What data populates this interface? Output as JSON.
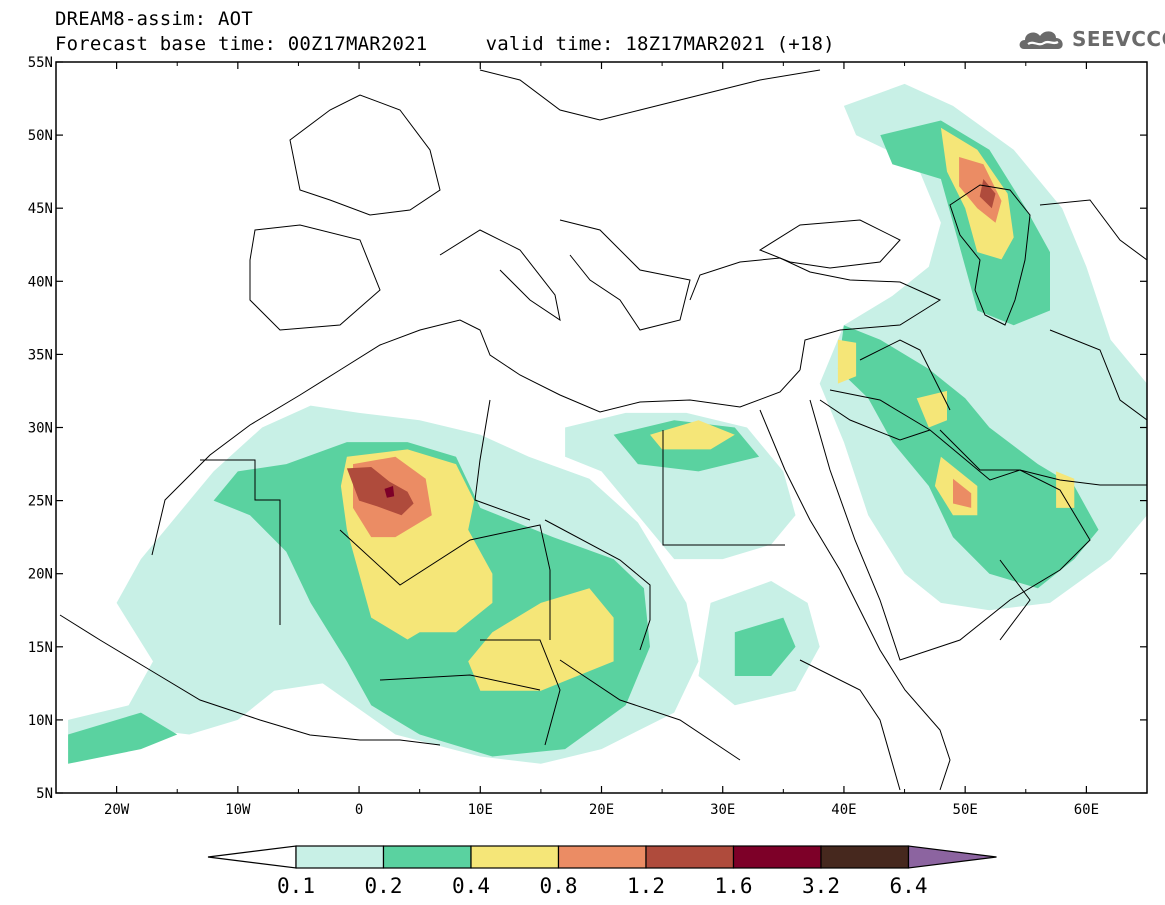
{
  "header": {
    "line1": "DREAM8-assim: AOT",
    "base_time_label": "Forecast base time: 00Z17MAR2021",
    "valid_time_label": "valid time: 18Z17MAR2021 (+18)"
  },
  "logo": {
    "text": "SEEVCCC",
    "icon": "cloud-icon",
    "color": "#6a6a6a"
  },
  "map": {
    "lon_range": [
      -25,
      65
    ],
    "lat_range": [
      5,
      55
    ],
    "lon_ticks": [
      {
        "value": -20,
        "label": "20W"
      },
      {
        "value": -10,
        "label": "10W"
      },
      {
        "value": 0,
        "label": "0"
      },
      {
        "value": 10,
        "label": "10E"
      },
      {
        "value": 20,
        "label": "20E"
      },
      {
        "value": 30,
        "label": "30E"
      },
      {
        "value": 40,
        "label": "40E"
      },
      {
        "value": 50,
        "label": "50E"
      },
      {
        "value": 60,
        "label": "60E"
      }
    ],
    "lat_ticks": [
      {
        "value": 55,
        "label": "55N"
      },
      {
        "value": 50,
        "label": "50N"
      },
      {
        "value": 45,
        "label": "45N"
      },
      {
        "value": 40,
        "label": "40N"
      },
      {
        "value": 35,
        "label": "35N"
      },
      {
        "value": 30,
        "label": "30N"
      },
      {
        "value": 25,
        "label": "25N"
      },
      {
        "value": 20,
        "label": "20N"
      },
      {
        "value": 15,
        "label": "15N"
      },
      {
        "value": 10,
        "label": "10N"
      },
      {
        "value": 5,
        "label": "5N"
      }
    ]
  },
  "colorbar": {
    "levels": [
      "0.1",
      "0.2",
      "0.4",
      "0.8",
      "1.2",
      "1.6",
      "3.2",
      "6.4"
    ],
    "colors": [
      "#ffffff",
      "#c8f0e6",
      "#5ad2a0",
      "#f5e678",
      "#eb8c64",
      "#af4b3c",
      "#7d0028",
      "#46281e",
      "#8c64a0"
    ]
  },
  "dust_plumes": [
    {
      "name": "west-saharan-plume",
      "bins": [
        {
          "level": 1,
          "outline": [
            [
              -24,
              8
            ],
            [
              -19,
              9.5
            ],
            [
              -14,
              9
            ],
            [
              -10,
              10
            ],
            [
              -7,
              12
            ],
            [
              -3,
              12.5
            ],
            [
              3,
              9
            ],
            [
              10,
              7.5
            ],
            [
              15,
              7
            ],
            [
              20,
              8
            ],
            [
              26,
              10.5
            ],
            [
              28,
              14
            ],
            [
              27,
              18
            ],
            [
              23,
              23.5
            ],
            [
              19,
              26.5
            ],
            [
              14,
              28
            ],
            [
              10,
              29.5
            ],
            [
              5,
              30.5
            ],
            [
              0,
              31
            ],
            [
              -4,
              31.5
            ],
            [
              -8,
              30
            ],
            [
              -12,
              27
            ],
            [
              -15,
              24
            ],
            [
              -18,
              21
            ],
            [
              -20,
              18
            ],
            [
              -17,
              14
            ],
            [
              -19,
              11
            ],
            [
              -24,
              10
            ]
          ]
        },
        {
          "level": 2,
          "outline": [
            [
              -12,
              25
            ],
            [
              -9,
              24
            ],
            [
              -6,
              21.5
            ],
            [
              -4,
              18
            ],
            [
              -1,
              14
            ],
            [
              1,
              11
            ],
            [
              5,
              9
            ],
            [
              11,
              7.5
            ],
            [
              17,
              8
            ],
            [
              22,
              11
            ],
            [
              24,
              15
            ],
            [
              23.5,
              19
            ],
            [
              21,
              21
            ],
            [
              16,
              22.5
            ],
            [
              10,
              24.5
            ],
            [
              8,
              28
            ],
            [
              4,
              29
            ],
            [
              -1,
              29
            ],
            [
              -6,
              27.5
            ],
            [
              -10,
              27
            ]
          ]
        },
        {
          "level": 3,
          "outline": [
            [
              -1,
              28
            ],
            [
              4,
              28.5
            ],
            [
              8,
              27.5
            ],
            [
              9.5,
              25
            ],
            [
              9,
              23
            ],
            [
              11,
              20
            ],
            [
              11,
              18
            ],
            [
              8,
              16
            ],
            [
              5,
              16
            ],
            [
              4,
              15.5
            ],
            [
              1,
              17
            ],
            [
              0,
              20
            ],
            [
              -1,
              23
            ],
            [
              -1.5,
              26
            ]
          ]
        },
        {
          "level": 3,
          "outline": [
            [
              15,
              18
            ],
            [
              19,
              19
            ],
            [
              21,
              17
            ],
            [
              21,
              14
            ],
            [
              18,
              13
            ],
            [
              15,
              12
            ],
            [
              10,
              12
            ],
            [
              9,
              14
            ],
            [
              11,
              16
            ]
          ]
        },
        {
          "level": 4,
          "outline": [
            [
              -0.5,
              27.5
            ],
            [
              3,
              28
            ],
            [
              5.5,
              26.5
            ],
            [
              6,
              24
            ],
            [
              3,
              22.5
            ],
            [
              1,
              22.5
            ],
            [
              -0.5,
              24.5
            ]
          ]
        },
        {
          "level": 5,
          "outline": [
            [
              -1,
              27.2
            ],
            [
              1,
              27.3
            ],
            [
              2.5,
              26.3
            ],
            [
              4,
              25.6
            ],
            [
              4.5,
              24.8
            ],
            [
              3.5,
              24
            ],
            [
              1.5,
              24.6
            ],
            [
              0,
              25
            ]
          ]
        },
        {
          "level": 6,
          "outline": [
            [
              2.1,
              25.8
            ],
            [
              2.8,
              26
            ],
            [
              2.9,
              25.3
            ],
            [
              2.3,
              25.2
            ]
          ]
        },
        {
          "level": 2,
          "outline": [
            [
              -24,
              7
            ],
            [
              -18,
              8
            ],
            [
              -15,
              9
            ],
            [
              -18,
              10.5
            ],
            [
              -24,
              9
            ]
          ]
        }
      ]
    },
    {
      "name": "egypt-libya-plume",
      "bins": [
        {
          "level": 1,
          "outline": [
            [
              17,
              30
            ],
            [
              22,
              31
            ],
            [
              27,
              31
            ],
            [
              32,
              30
            ],
            [
              35,
              27
            ],
            [
              36,
              24
            ],
            [
              34,
              22
            ],
            [
              30,
              21
            ],
            [
              26,
              21
            ],
            [
              23,
              24
            ],
            [
              20,
              27
            ],
            [
              17,
              28
            ]
          ]
        },
        {
          "level": 2,
          "outline": [
            [
              21,
              29.5
            ],
            [
              26,
              30.5
            ],
            [
              31,
              30
            ],
            [
              33,
              28
            ],
            [
              28,
              27
            ],
            [
              23,
              27.5
            ]
          ]
        },
        {
          "level": 3,
          "outline": [
            [
              24,
              29.5
            ],
            [
              28,
              30.5
            ],
            [
              31,
              29.5
            ],
            [
              29,
              28.5
            ],
            [
              25,
              28.5
            ]
          ]
        },
        {
          "level": 1,
          "outline": [
            [
              29,
              18
            ],
            [
              34,
              19.5
            ],
            [
              37,
              18
            ],
            [
              38,
              15
            ],
            [
              36,
              12
            ],
            [
              31,
              11
            ],
            [
              28,
              13
            ]
          ]
        },
        {
          "level": 2,
          "outline": [
            [
              31,
              16
            ],
            [
              35,
              17
            ],
            [
              36,
              15
            ],
            [
              34,
              13
            ],
            [
              31,
              13
            ]
          ]
        }
      ]
    },
    {
      "name": "caspian-arabian-plume",
      "bins": [
        {
          "level": 1,
          "outline": [
            [
              40,
              52
            ],
            [
              45,
              53.5
            ],
            [
              49,
              52
            ],
            [
              54,
              49
            ],
            [
              58,
              45
            ],
            [
              60,
              41
            ],
            [
              62,
              36
            ],
            [
              65,
              33
            ],
            [
              65,
              24
            ],
            [
              62,
              21
            ],
            [
              57,
              18
            ],
            [
              52,
              17.5
            ],
            [
              48,
              18
            ],
            [
              45,
              20
            ],
            [
              42,
              24
            ],
            [
              40,
              29
            ],
            [
              38,
              33
            ],
            [
              40,
              37
            ],
            [
              44,
              39
            ],
            [
              47,
              41
            ],
            [
              48,
              44
            ],
            [
              46,
              48
            ],
            [
              41,
              50
            ]
          ]
        },
        {
          "level": 2,
          "outline": [
            [
              43,
              50
            ],
            [
              48,
              51
            ],
            [
              52,
              49
            ],
            [
              55,
              45
            ],
            [
              57,
              42
            ],
            [
              57,
              38
            ],
            [
              54,
              37
            ],
            [
              51,
              38
            ],
            [
              50,
              41
            ],
            [
              49,
              44
            ],
            [
              48,
              47
            ],
            [
              44,
              48
            ]
          ]
        },
        {
          "level": 2,
          "outline": [
            [
              40,
              37
            ],
            [
              43,
              36
            ],
            [
              47,
              34
            ],
            [
              50,
              32
            ],
            [
              52,
              30
            ],
            [
              56,
              27.5
            ],
            [
              59,
              26
            ],
            [
              61,
              23
            ],
            [
              59,
              21
            ],
            [
              56,
              19
            ],
            [
              52,
              20
            ],
            [
              49,
              22.5
            ],
            [
              47,
              26
            ],
            [
              44,
              29
            ],
            [
              42,
              32
            ],
            [
              39.5,
              34
            ]
          ]
        },
        {
          "level": 3,
          "outline": [
            [
              48,
              50.5
            ],
            [
              51,
              49
            ],
            [
              53.5,
              46
            ],
            [
              54,
              43
            ],
            [
              53,
              41.5
            ],
            [
              51,
              42
            ],
            [
              50,
              45
            ],
            [
              48.5,
              47.5
            ]
          ]
        },
        {
          "level": 3,
          "outline": [
            [
              48,
              28
            ],
            [
              51,
              26
            ],
            [
              51,
              24
            ],
            [
              49,
              24
            ],
            [
              47.5,
              26
            ]
          ]
        },
        {
          "level": 3,
          "outline": [
            [
              39.5,
              36
            ],
            [
              41,
              35.8
            ],
            [
              41,
              33.5
            ],
            [
              39.5,
              33
            ]
          ]
        },
        {
          "level": 3,
          "outline": [
            [
              46,
              32
            ],
            [
              48.5,
              32.5
            ],
            [
              48.5,
              30.5
            ],
            [
              47,
              30
            ]
          ]
        },
        {
          "level": 3,
          "outline": [
            [
              57.5,
              27
            ],
            [
              59,
              26.5
            ],
            [
              59,
              24.5
            ],
            [
              57.5,
              24.5
            ]
          ]
        },
        {
          "level": 4,
          "outline": [
            [
              49.5,
              48.5
            ],
            [
              51.5,
              48
            ],
            [
              53,
              45.5
            ],
            [
              52.5,
              44
            ],
            [
              51,
              45
            ],
            [
              49.5,
              46.5
            ]
          ]
        },
        {
          "level": 4,
          "outline": [
            [
              49,
              26.5
            ],
            [
              50.5,
              25.5
            ],
            [
              50.5,
              24.5
            ],
            [
              49,
              24.8
            ]
          ]
        },
        {
          "level": 5,
          "outline": [
            [
              51.5,
              47
            ],
            [
              52.5,
              46
            ],
            [
              52.2,
              45
            ],
            [
              51.2,
              45.8
            ]
          ]
        }
      ]
    }
  ]
}
